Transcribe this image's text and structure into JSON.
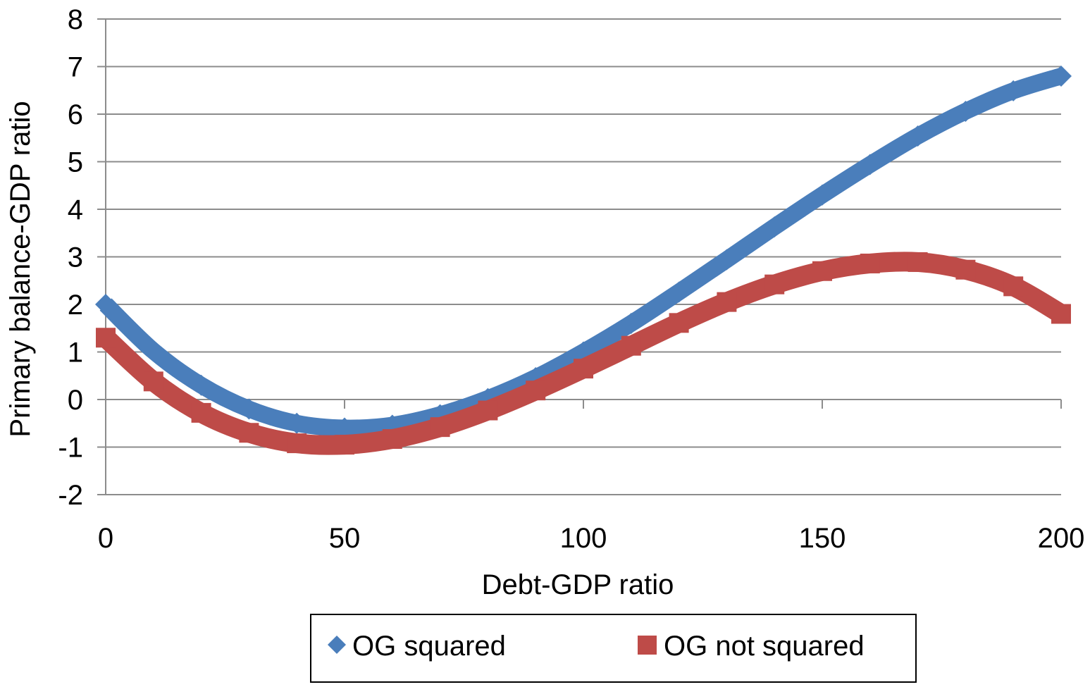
{
  "chart_data": {
    "type": "scatter",
    "title": "",
    "xlabel": "Debt-GDP ratio",
    "ylabel": "Primary balance-GDP ratio",
    "xlim": [
      0,
      200
    ],
    "ylim": [
      -2,
      8
    ],
    "xticks": [
      0,
      50,
      100,
      150,
      200
    ],
    "yticks": [
      -2,
      -1,
      0,
      1,
      2,
      3,
      4,
      5,
      6,
      7,
      8
    ],
    "grid": "horizontal",
    "legend_placement": "bottom",
    "x": [
      0,
      10,
      20,
      30,
      40,
      50,
      60,
      70,
      80,
      90,
      100,
      110,
      120,
      130,
      140,
      150,
      160,
      170,
      180,
      190,
      200
    ],
    "series": [
      {
        "name": "OG squared",
        "marker": "diamond",
        "color": "#4a7ebb",
        "values": [
          2.0,
          1.02,
          0.3,
          -0.2,
          -0.5,
          -0.6,
          -0.54,
          -0.32,
          0.02,
          0.46,
          1.0,
          1.6,
          2.26,
          2.94,
          3.63,
          4.3,
          4.94,
          5.54,
          6.06,
          6.49,
          6.8
        ]
      },
      {
        "name": "OG not squared",
        "marker": "square",
        "color": "#be4b48",
        "values": [
          1.3,
          0.38,
          -0.28,
          -0.7,
          -0.92,
          -0.95,
          -0.83,
          -0.58,
          -0.23,
          0.19,
          0.65,
          1.13,
          1.61,
          2.05,
          2.42,
          2.7,
          2.86,
          2.89,
          2.73,
          2.38,
          1.8
        ]
      }
    ]
  }
}
